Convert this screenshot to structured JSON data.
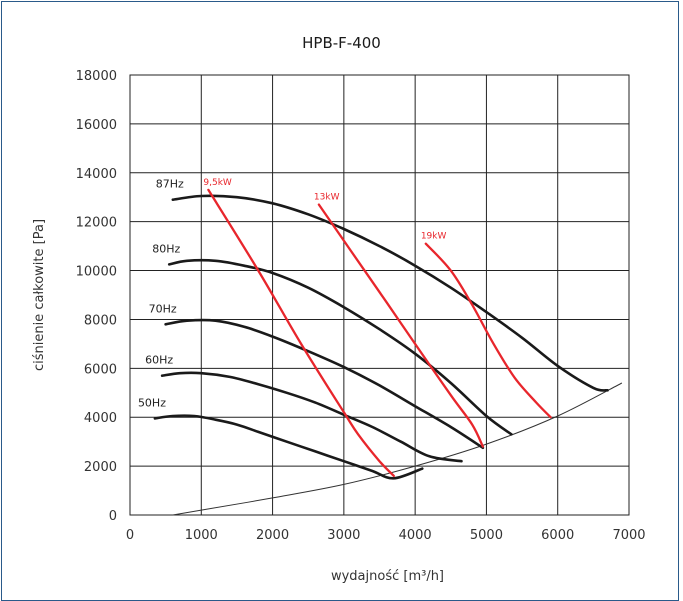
{
  "chart_data": {
    "type": "line",
    "title": "HPB-F-400",
    "xlabel": "wydajność [m³/h]",
    "ylabel": "ciśnienie całkowite [Pa]",
    "xlim": [
      0,
      7000
    ],
    "ylim": [
      0,
      18000
    ],
    "x_ticks": [
      "0",
      "1000",
      "2000",
      "3000",
      "4000",
      "5000",
      "6000",
      "7000"
    ],
    "y_ticks": [
      "0",
      "2000",
      "4000",
      "6000",
      "8000",
      "10000",
      "12000",
      "14000",
      "16000",
      "18000"
    ],
    "grid": true,
    "colors": {
      "curve": "#1a1a1a",
      "power": "#e8262c",
      "system": "#333333",
      "grid": "#222222",
      "frame": "#2a5a8a"
    },
    "series": [
      {
        "name": "87Hz",
        "x": [
          600,
          1000,
          1500,
          2000,
          2500,
          3000,
          3500,
          4000,
          4500,
          5000,
          5500,
          6000,
          6500,
          6700
        ],
        "y": [
          12900,
          13050,
          13000,
          12750,
          12300,
          11700,
          11000,
          10200,
          9300,
          8300,
          7250,
          6100,
          5200,
          5100
        ]
      },
      {
        "name": "80Hz",
        "x": [
          550,
          800,
          1200,
          1600,
          2000,
          2500,
          3000,
          3500,
          4000,
          4500,
          5000,
          5350
        ],
        "y": [
          10250,
          10400,
          10400,
          10200,
          9900,
          9300,
          8500,
          7600,
          6600,
          5400,
          4050,
          3300
        ]
      },
      {
        "name": "70Hz",
        "x": [
          500,
          800,
          1200,
          1600,
          2000,
          2500,
          3000,
          3500,
          4000,
          4500,
          4950
        ],
        "y": [
          7800,
          7950,
          7950,
          7700,
          7300,
          6700,
          6050,
          5300,
          4450,
          3600,
          2750
        ]
      },
      {
        "name": "60Hz",
        "x": [
          450,
          700,
          1000,
          1400,
          1800,
          2200,
          2600,
          3000,
          3400,
          3800,
          4200,
          4650
        ],
        "y": [
          5700,
          5800,
          5800,
          5650,
          5350,
          5000,
          4600,
          4100,
          3600,
          3000,
          2400,
          2200
        ]
      },
      {
        "name": "50Hz",
        "x": [
          350,
          600,
          900,
          1200,
          1500,
          1800,
          2200,
          2600,
          3000,
          3400,
          3700,
          4100
        ],
        "y": [
          3950,
          4050,
          4050,
          3900,
          3700,
          3400,
          3000,
          2600,
          2200,
          1800,
          1500,
          1900
        ]
      }
    ],
    "power_lines": [
      {
        "name": "9,5kW",
        "x": [
          1100,
          1800,
          2400,
          3000,
          3200,
          3500,
          3700
        ],
        "y": [
          13300,
          10000,
          7000,
          4200,
          3300,
          2200,
          1600
        ]
      },
      {
        "name": "13kW",
        "x": [
          2650,
          3100,
          3600,
          4000,
          4500,
          4800,
          4950
        ],
        "y": [
          12700,
          10800,
          8700,
          7000,
          4900,
          3700,
          2800
        ]
      },
      {
        "name": "19kW",
        "x": [
          4150,
          4500,
          4800,
          5100,
          5400,
          5700,
          5900
        ],
        "y": [
          11100,
          10000,
          8600,
          7000,
          5600,
          4600,
          4000
        ]
      }
    ],
    "system_curve": {
      "x": [
        600,
        1000,
        2000,
        3000,
        4000,
        5000,
        6000,
        6900
      ],
      "y": [
        0,
        200,
        700,
        1250,
        2000,
        2900,
        4050,
        5400
      ]
    }
  }
}
